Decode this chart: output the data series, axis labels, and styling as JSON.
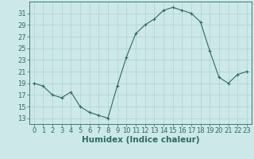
{
  "x": [
    0,
    1,
    2,
    3,
    4,
    5,
    6,
    7,
    8,
    9,
    10,
    11,
    12,
    13,
    14,
    15,
    16,
    17,
    18,
    19,
    20,
    21,
    22,
    23
  ],
  "y": [
    19,
    18.5,
    17,
    16.5,
    17.5,
    15,
    14,
    13.5,
    13,
    18.5,
    23.5,
    27.5,
    29,
    30,
    31.5,
    32,
    31.5,
    31,
    29.5,
    24.5,
    20,
    19,
    20.5,
    21
  ],
  "line_color": "#2e6b5e",
  "marker": "+",
  "bg_color": "#cce8e8",
  "grid_color": "#b0d0d0",
  "xlabel": "Humidex (Indice chaleur)",
  "ylim": [
    12,
    33
  ],
  "xlim": [
    -0.5,
    23.5
  ],
  "yticks": [
    13,
    15,
    17,
    19,
    21,
    23,
    25,
    27,
    29,
    31
  ],
  "xticks": [
    0,
    1,
    2,
    3,
    4,
    5,
    6,
    7,
    8,
    9,
    10,
    11,
    12,
    13,
    14,
    15,
    16,
    17,
    18,
    19,
    20,
    21,
    22,
    23
  ],
  "tick_color": "#2e6b5e",
  "axis_color": "#2e6b5e",
  "label_fontsize": 6,
  "xlabel_fontsize": 7.5
}
